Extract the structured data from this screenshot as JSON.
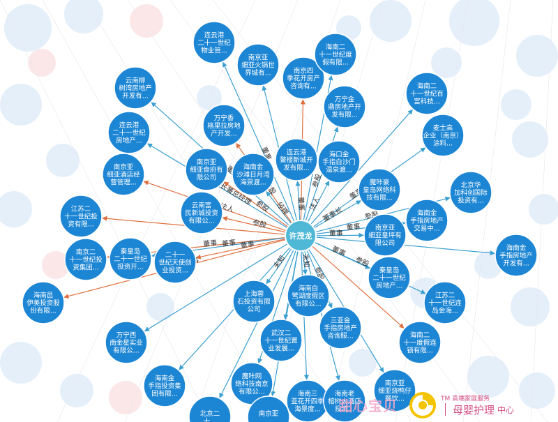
{
  "center": {
    "label": "许茂龙",
    "color": "#4fb8d6"
  },
  "colors": {
    "node": "#1d86d4",
    "edge_blue": "#3a9fd1",
    "edge_red": "#e0703e",
    "bg_blue": "#cfe1f5",
    "bg_red": "#f7d4d4"
  },
  "nodes": [
    {
      "lines": [
        "连云港",
        "二十一世纪",
        "物业管..."
      ]
    },
    {
      "lines": [
        "南京亚",
        "细亚火锅世",
        "界城有..."
      ]
    },
    {
      "lines": [
        "南京四",
        "季花开房产",
        "咨询有..."
      ]
    },
    {
      "lines": [
        "海南二",
        "十一世纪度",
        "假有限..."
      ]
    },
    {
      "lines": [
        "云南柳",
        "树湾房地产",
        "开发有..."
      ]
    },
    {
      "lines": [
        "万宁金",
        "鼎房地产开",
        "发有限..."
      ]
    },
    {
      "lines": [
        "海南二",
        "十一世纪百",
        "富科技..."
      ]
    },
    {
      "lines": [
        "万宁香",
        "格里拉房地",
        "产开发..."
      ]
    },
    {
      "lines": [
        "连云港",
        "二十一世纪",
        "房地产..."
      ]
    },
    {
      "lines": [
        "麦士高",
        "企业（南京）",
        "涂料..."
      ]
    },
    {
      "lines": [
        "连云港",
        "鳌楼新城开",
        "发有限..."
      ]
    },
    {
      "lines": [
        "海口金",
        "手指白沙门",
        "温泉渡..."
      ]
    },
    {
      "lines": [
        "南京亚",
        "细亚食府有",
        "限公司"
      ]
    },
    {
      "lines": [
        "海南金",
        "沙滩日月湾",
        "海景渡..."
      ]
    },
    {
      "lines": [
        "南京亚",
        "细亚酒店经",
        "营管理..."
      ]
    },
    {
      "lines": [
        "魔咔豪",
        "皇岛网络科",
        "技有限..."
      ]
    },
    {
      "lines": [
        "北京华",
        "加科创国际",
        "投资有..."
      ]
    },
    {
      "lines": [
        "云南富",
        "民新城投资",
        "有限公..."
      ]
    },
    {
      "lines": [
        "江苏二",
        "十一世纪投",
        "资有限..."
      ]
    },
    {
      "lines": [
        "海南金",
        "手指房地产",
        "交易中..."
      ]
    },
    {
      "lines": [
        "南京亚",
        "细亚皇坪有",
        "限公司"
      ]
    },
    {
      "lines": [
        "海南金",
        "手指房地产",
        "开发有..."
      ]
    },
    {
      "lines": [
        "南京二",
        "十一世纪投",
        "资集团..."
      ]
    },
    {
      "lines": [
        "秦皇岛",
        "二十一世纪",
        "投资开..."
      ]
    },
    {
      "lines": [
        "二十一",
        "世纪天使创",
        "业投资..."
      ]
    },
    {
      "lines": [
        "秦皇岛",
        "二十一世纪",
        "房地产..."
      ]
    },
    {
      "lines": [
        "海南白",
        "鹭湖度假区",
        "有限公..."
      ]
    },
    {
      "lines": [
        "上海蓉",
        "石投资有限",
        "公司"
      ]
    },
    {
      "lines": [
        "海南邑",
        "伊美投资股",
        "份有限..."
      ]
    },
    {
      "lines": [
        "江苏二",
        "十一世纪连",
        "岛金海..."
      ]
    },
    {
      "lines": [
        "三亚金",
        "手指房地产",
        "咨询服..."
      ]
    },
    {
      "lines": [
        "武汉二",
        "十一世纪置",
        "业发展..."
      ]
    },
    {
      "lines": [
        "万宁西",
        "南金星实业",
        "有限公..."
      ]
    },
    {
      "lines": [
        "海南二",
        "十一度假连",
        "锁有限..."
      ]
    },
    {
      "lines": [
        "海南金",
        "手指投资集",
        "团有限..."
      ]
    },
    {
      "lines": [
        "魔咔网",
        "络科技南京",
        "有限公..."
      ]
    },
    {
      "lines": [
        "海南三",
        "亚花开四季",
        "海景度..."
      ]
    },
    {
      "lines": [
        "海南老",
        "榕树大酒店",
        "投资..."
      ]
    },
    {
      "lines": [
        "南京亚",
        "细亚烧鸭仔",
        "餐饮..."
      ]
    },
    {
      "lines": [
        "北京二",
        "十..."
      ]
    },
    {
      "lines": [
        "南京亚",
        "..."
      ]
    }
  ],
  "edge_labels": [
    "董事",
    "参股",
    "监事",
    "参股",
    "董事",
    "参股",
    "董事",
    "参股",
    "董事长兼总经理",
    "董事长",
    "董事",
    "法人",
    "参股",
    "经理",
    "法人",
    "董事长",
    "参股",
    "参股",
    "董事",
    "董事",
    "董事",
    "参股",
    "董事",
    "董事",
    "董事",
    "董事",
    "未知",
    "未知",
    "董事",
    "参股",
    "参股"
  ],
  "watermark": {
    "left_text": "甜心宝贝",
    "tm_text": "TM 高端家庭服务",
    "brand_text": "母婴护理",
    "brand_suffix": "中心"
  }
}
